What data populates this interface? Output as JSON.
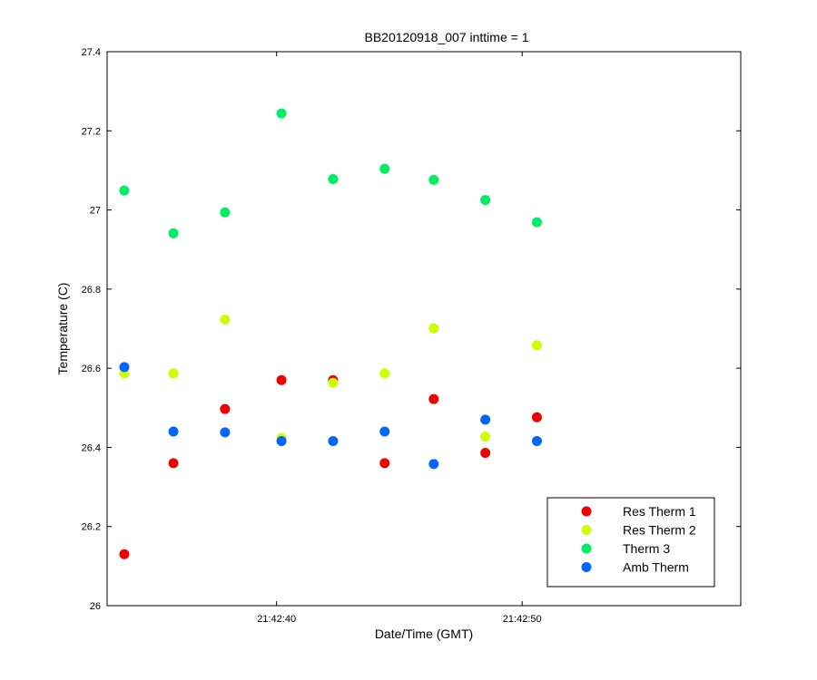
{
  "chart_data": {
    "type": "scatter",
    "title": "BB20120918_007 inttime = 1",
    "xlabel": "Date/Time (GMT)",
    "ylabel": "Temperature (C)",
    "xlim": [
      "21:42:33.1",
      "21:42:58.9"
    ],
    "ylim": [
      26,
      27.4
    ],
    "x_ticks": [
      "21:42:40",
      "21:42:50"
    ],
    "y_ticks": [
      "26",
      "26.2",
      "26.4",
      "26.6",
      "26.8",
      "27",
      "27.2",
      "27.4"
    ],
    "grid": false,
    "legend_position": "bottom-right",
    "x": [
      "21:42:33.8",
      "21:42:35.8",
      "21:42:37.9",
      "21:42:40.2",
      "21:42:42.3",
      "21:42:44.4",
      "21:42:46.4",
      "21:42:48.5",
      "21:42:50.6"
    ],
    "series": [
      {
        "name": "Res Therm 1",
        "color": "#f00000",
        "values": [
          26.13,
          26.36,
          26.497,
          26.57,
          26.57,
          26.36,
          26.522,
          26.386,
          26.476
        ]
      },
      {
        "name": "Res Therm 2",
        "color": "#ccff00",
        "values": [
          26.587,
          26.587,
          26.723,
          26.424,
          26.563,
          26.587,
          26.701,
          26.427,
          26.658
        ]
      },
      {
        "name": "Therm 3",
        "color": "#00ee66",
        "values": [
          27.049,
          26.941,
          26.994,
          27.244,
          27.078,
          27.104,
          27.076,
          27.025,
          26.969
        ]
      },
      {
        "name": "Amb Therm",
        "color": "#0066ff",
        "values": [
          26.603,
          26.44,
          26.438,
          26.416,
          26.416,
          26.44,
          26.358,
          26.47,
          26.416
        ]
      }
    ]
  }
}
